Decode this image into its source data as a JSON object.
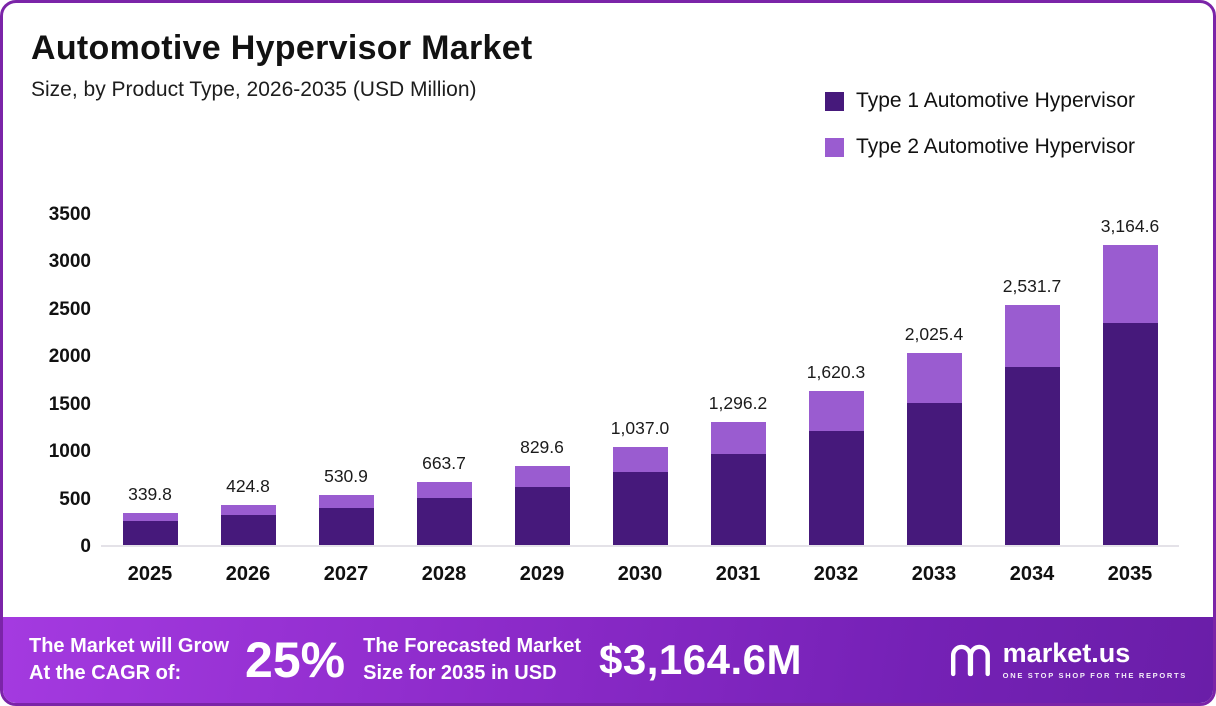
{
  "header": {
    "title": "Automotive Hypervisor Market",
    "subtitle": "Size, by Product Type, 2026-2035 (USD Million)"
  },
  "legend": [
    {
      "label": "Type 1 Automotive Hypervisor",
      "color": "#46197b"
    },
    {
      "label": "Type 2 Automotive Hypervisor",
      "color": "#9a5cd0"
    }
  ],
  "chart_data": {
    "type": "bar",
    "stacked": true,
    "title": "Automotive Hypervisor Market Size, by Product Type, 2026-2035 (USD Million)",
    "categories": [
      "2025",
      "2026",
      "2027",
      "2028",
      "2029",
      "2030",
      "2031",
      "2032",
      "2033",
      "2034",
      "2035"
    ],
    "series": [
      {
        "name": "Type 1 Automotive Hypervisor",
        "color": "#46197b",
        "values": [
          251.5,
          314.4,
          392.9,
          491.1,
          613.9,
          767.4,
          959.2,
          1199.0,
          1498.8,
          1873.5,
          2341.8
        ]
      },
      {
        "name": "Type 2 Automotive Hypervisor",
        "color": "#9a5cd0",
        "values": [
          88.3,
          110.4,
          138.0,
          172.6,
          215.7,
          269.6,
          337.0,
          421.3,
          526.6,
          658.2,
          822.8
        ]
      }
    ],
    "totals": [
      339.8,
      424.8,
      530.9,
      663.7,
      829.6,
      1037.0,
      1296.2,
      1620.3,
      2025.4,
      2531.7,
      3164.6
    ],
    "total_labels": [
      "339.8",
      "424.8",
      "530.9",
      "663.7",
      "829.6",
      "1,037.0",
      "1,296.2",
      "1,620.3",
      "2,025.4",
      "2,531.7",
      "3,164.6"
    ],
    "xlabel": "",
    "ylabel": "",
    "ylim": [
      0,
      3500
    ],
    "yticks": [
      0,
      500,
      1000,
      1500,
      2000,
      2500,
      3000,
      3500
    ],
    "grid": false,
    "legend_position": "top-right"
  },
  "banner": {
    "left_line1": "The Market will Grow",
    "left_line2": "At the CAGR of:",
    "cagr": "25%",
    "mid_line1": "The Forecasted Market",
    "mid_line2": "Size for 2035 in USD",
    "value": "$3,164.6M",
    "logo_text": "market.us",
    "logo_tagline": "ONE STOP SHOP FOR THE REPORTS"
  }
}
